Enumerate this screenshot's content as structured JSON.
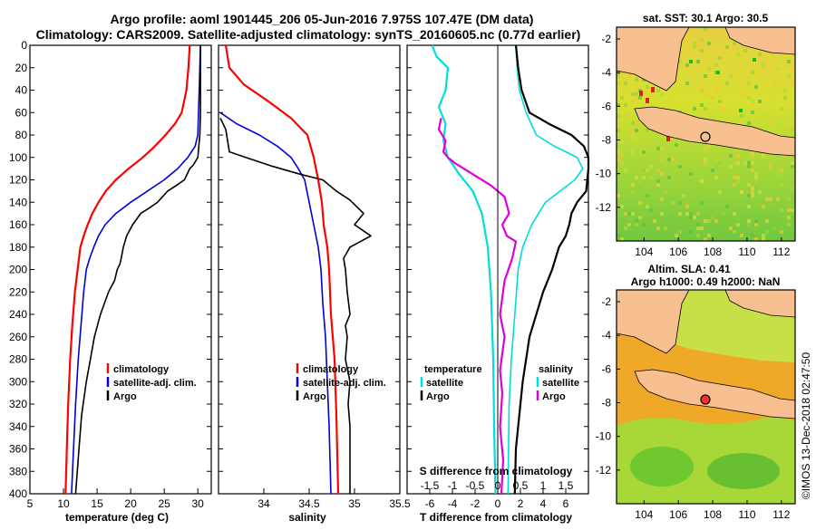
{
  "titles": {
    "line1": "Argo profile: aoml 1901445_206 05-Jun-2016 7.975S 107.47E (DM data)",
    "line2": "Climatology: CARS2009. Satellite-adjusted climatology: synTS_20160605.nc (0.77d earlier)"
  },
  "colors": {
    "climatology": "#ff0000",
    "satellite": "#0000dd",
    "argo": "#000000",
    "t_sat": "#00dddd",
    "s_sat": "#00dddd",
    "t_argo": "#000000",
    "s_argo": "#dd00dd"
  },
  "chart_data": [
    {
      "type": "line",
      "title": "",
      "xlabel": "temperature (deg C)",
      "ylabel": "",
      "xlim": [
        5,
        32
      ],
      "ylim": [
        400,
        0
      ],
      "xticks": [
        "5",
        "10",
        "15",
        "20",
        "25",
        "30"
      ],
      "yticks": [
        "0",
        "20",
        "40",
        "60",
        "80",
        "100",
        "120",
        "140",
        "160",
        "180",
        "200",
        "220",
        "240",
        "260",
        "280",
        "300",
        "320",
        "340",
        "360",
        "380",
        "400"
      ],
      "legend": [
        "climatology",
        "satellite-adj. clim.",
        "Argo"
      ],
      "series": [
        {
          "name": "climatology",
          "x": [
            28.8,
            28.6,
            28.3,
            27.6,
            26.6,
            25.2,
            23.6,
            21.8,
            19.7,
            17.8,
            16.3,
            15.2,
            14.3,
            13.6,
            13.0,
            12.5,
            12.1,
            11.7,
            11.3,
            11.0,
            10.7,
            10.5,
            10.3
          ],
          "y": [
            0,
            20,
            40,
            60,
            70,
            80,
            90,
            100,
            110,
            120,
            130,
            140,
            150,
            160,
            170,
            180,
            200,
            220,
            250,
            280,
            320,
            360,
            400
          ]
        },
        {
          "name": "satellite-adj. clim.",
          "x": [
            30.4,
            30.3,
            30.2,
            30.1,
            30.0,
            29.6,
            28.5,
            27.0,
            25.0,
            22.5,
            20.0,
            17.8,
            16.2,
            15.2,
            14.5,
            13.9,
            13.4,
            13.0,
            12.6,
            12.2,
            11.8,
            11.5,
            11.2
          ],
          "y": [
            0,
            20,
            40,
            60,
            80,
            90,
            100,
            110,
            120,
            130,
            140,
            150,
            160,
            170,
            180,
            190,
            200,
            220,
            250,
            280,
            320,
            360,
            400
          ]
        },
        {
          "name": "Argo",
          "x": [
            30.4,
            30.4,
            30.4,
            30.4,
            30.3,
            30.0,
            29.3,
            28.8,
            28.0,
            26.8,
            25.5,
            24.0,
            22.8,
            21.5,
            20.3,
            19.4,
            18.9,
            18.6,
            18.4,
            18.0,
            17.6,
            16.7,
            15.5,
            14.6,
            14.0,
            13.4,
            12.7,
            12.3,
            11.8
          ],
          "y": [
            0,
            20,
            40,
            60,
            80,
            100,
            107,
            110,
            120,
            125,
            130,
            140,
            145,
            150,
            160,
            170,
            180,
            190,
            195,
            200,
            210,
            220,
            240,
            260,
            280,
            300,
            330,
            360,
            400
          ]
        }
      ]
    },
    {
      "type": "line",
      "title": "",
      "xlabel": "salinity",
      "ylabel": "",
      "xlim": [
        33.5,
        35.5
      ],
      "ylim": [
        400,
        0
      ],
      "xticks": [
        "34",
        "34.5",
        "35",
        "35.5"
      ],
      "legend": [
        "climatology",
        "satellite-adj. clim.",
        "Argo"
      ],
      "series": [
        {
          "name": "climatology",
          "x": [
            33.58,
            33.62,
            33.78,
            34.05,
            34.3,
            34.48,
            34.55,
            34.6,
            34.64,
            34.66,
            34.7,
            34.72,
            34.74,
            34.78,
            34.8,
            34.82
          ],
          "y": [
            0,
            20,
            35,
            50,
            65,
            80,
            100,
            120,
            140,
            160,
            180,
            200,
            240,
            280,
            330,
            400
          ]
        },
        {
          "name": "satellite-adj. clim.",
          "x": [
            33.52,
            33.7,
            33.95,
            34.15,
            34.3,
            34.38,
            34.45,
            34.5,
            34.55,
            34.6,
            34.63,
            34.65,
            34.68,
            34.7,
            34.72,
            34.74
          ],
          "y": [
            60,
            70,
            80,
            90,
            100,
            110,
            120,
            140,
            160,
            180,
            200,
            230,
            260,
            300,
            340,
            400
          ]
        },
        {
          "name": "Argo",
          "x": [
            33.52,
            33.58,
            33.6,
            33.62,
            33.8,
            34.1,
            34.4,
            34.65,
            34.8,
            34.95,
            35.1,
            35.0,
            35.18,
            34.95,
            34.88,
            34.9,
            34.92,
            34.95,
            34.9,
            34.92,
            34.9,
            34.95,
            34.93,
            34.95,
            34.95,
            34.95
          ],
          "y": [
            65,
            75,
            85,
            95,
            100,
            108,
            115,
            120,
            130,
            138,
            150,
            160,
            170,
            180,
            190,
            200,
            220,
            240,
            250,
            260,
            280,
            300,
            320,
            340,
            370,
            400
          ]
        }
      ]
    },
    {
      "type": "line",
      "title": "",
      "xlabel": "T difference from climatology",
      "secondary_xlabel": "S difference from climatology",
      "ylabel": "",
      "xlim": [
        -8,
        8
      ],
      "ylim": [
        400,
        0
      ],
      "xticks": [
        "-6",
        "-4",
        "-2",
        "0",
        "2",
        "4",
        "6"
      ],
      "secondary_xticks": [
        "-1.5",
        "-1",
        "-0.5",
        "0",
        "0.5",
        "1",
        "1.5"
      ],
      "legend_left_title": "temperature",
      "legend_right_title": "salinity",
      "legend_left": [
        "satellite",
        "Argo"
      ],
      "legend_right": [
        "satellite",
        "Argo"
      ],
      "series": [
        {
          "name": "T satellite",
          "x": [
            1.6,
            1.7,
            1.9,
            2.5,
            3.4,
            5.0,
            7.0,
            7.5,
            6.8,
            5.5,
            4.2,
            3.0,
            2.2,
            1.8,
            1.5,
            1.2,
            1.0,
            0.9
          ],
          "y": [
            0,
            20,
            40,
            60,
            80,
            90,
            100,
            110,
            120,
            130,
            140,
            160,
            180,
            200,
            240,
            280,
            320,
            400
          ]
        },
        {
          "name": "T Argo",
          "x": [
            1.6,
            1.8,
            2.1,
            2.8,
            4.5,
            6.5,
            7.6,
            8.0,
            8.0,
            7.8,
            7.0,
            6.5,
            6.3,
            6.0,
            5.4,
            4.8,
            4.0,
            2.8,
            2.2,
            1.6,
            1.5
          ],
          "y": [
            0,
            20,
            40,
            60,
            70,
            80,
            90,
            100,
            110,
            130,
            140,
            150,
            160,
            170,
            180,
            200,
            220,
            260,
            300,
            360,
            400
          ]
        },
        {
          "name": "S satellite",
          "x": [
            -1.45,
            -1.35,
            -1.1,
            -1.15,
            -1.3,
            -1.15,
            -1.2,
            -1.1,
            -0.85,
            -0.55,
            -0.35,
            -0.22,
            -0.15,
            -0.1,
            -0.08,
            -0.05
          ],
          "y": [
            0,
            10,
            20,
            40,
            55,
            70,
            85,
            100,
            115,
            130,
            150,
            180,
            220,
            280,
            340,
            400
          ]
        },
        {
          "name": "S Argo",
          "x": [
            -1.25,
            -1.3,
            -1.15,
            -1.2,
            -1.1,
            -0.95,
            -0.55,
            -0.15,
            0.15,
            0.25,
            0.1,
            0.2,
            0.4,
            0.32,
            0.15,
            0.05,
            0.15,
            0.05,
            0.1,
            0.05,
            0.12,
            0.08
          ],
          "y": [
            65,
            75,
            85,
            95,
            100,
            105,
            115,
            125,
            135,
            150,
            160,
            170,
            175,
            190,
            210,
            240,
            260,
            290,
            310,
            340,
            370,
            400
          ]
        }
      ]
    }
  ],
  "map_top": {
    "title": "sat. SST: 30.1  Argo: 30.5",
    "yticks": [
      "-2",
      "-4",
      "-6",
      "-8",
      "-10",
      "-12"
    ],
    "xticks": [
      "104",
      "106",
      "108",
      "110",
      "112"
    ]
  },
  "map_bottom": {
    "title1": "Altim. SLA: 0.41",
    "title2": "Argo h1000: 0.49 h2000: NaN",
    "yticks": [
      "-2",
      "-4",
      "-6",
      "-8",
      "-10",
      "-12"
    ],
    "xticks": [
      "104",
      "106",
      "108",
      "110",
      "112"
    ]
  },
  "footer": "©IMOS 13-Dec-2018 02:47:50"
}
